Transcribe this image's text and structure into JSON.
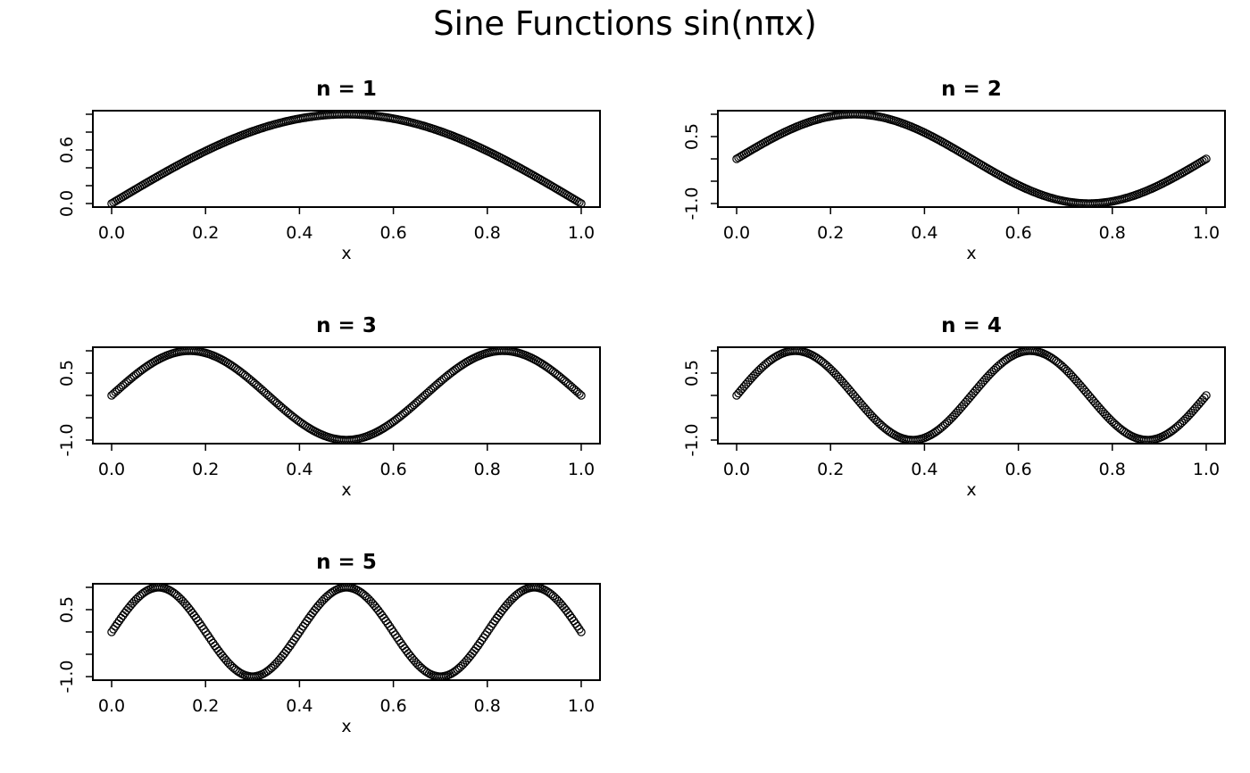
{
  "title": "Sine Functions sin(nπx)",
  "chart_data": [
    {
      "type": "scatter",
      "title": "n =  1",
      "xlabel": "x",
      "ylabel": "",
      "xlim": [
        0,
        1
      ],
      "ylim": [
        0,
        1
      ],
      "x_ticks": [
        0.0,
        0.2,
        0.4,
        0.6,
        0.8,
        1.0
      ],
      "x_tick_labels": [
        "0.0",
        "0.2",
        "0.4",
        "0.6",
        "0.8",
        "1.0"
      ],
      "y_ticks": [
        0.0,
        0.2,
        0.4,
        0.6,
        0.8,
        1.0
      ],
      "y_tick_labels": [
        "0.0",
        "",
        "",
        "0.6",
        "",
        ""
      ],
      "marker": "open-circle",
      "n": 1,
      "function": "sin(nπx)"
    },
    {
      "type": "scatter",
      "title": "n =  2",
      "xlabel": "x",
      "ylabel": "",
      "xlim": [
        0,
        1
      ],
      "ylim": [
        -1,
        1
      ],
      "x_ticks": [
        0.0,
        0.2,
        0.4,
        0.6,
        0.8,
        1.0
      ],
      "x_tick_labels": [
        "0.0",
        "0.2",
        "0.4",
        "0.6",
        "0.8",
        "1.0"
      ],
      "y_ticks": [
        -1.0,
        -0.5,
        0.0,
        0.5,
        1.0
      ],
      "y_tick_labels": [
        "-1.0",
        "",
        "",
        "0.5",
        ""
      ],
      "marker": "open-circle",
      "n": 2,
      "function": "sin(nπx)"
    },
    {
      "type": "scatter",
      "title": "n =  3",
      "xlabel": "x",
      "ylabel": "",
      "xlim": [
        0,
        1
      ],
      "ylim": [
        -1,
        1
      ],
      "x_ticks": [
        0.0,
        0.2,
        0.4,
        0.6,
        0.8,
        1.0
      ],
      "x_tick_labels": [
        "0.0",
        "0.2",
        "0.4",
        "0.6",
        "0.8",
        "1.0"
      ],
      "y_ticks": [
        -1.0,
        -0.5,
        0.0,
        0.5,
        1.0
      ],
      "y_tick_labels": [
        "-1.0",
        "",
        "",
        "0.5",
        ""
      ],
      "marker": "open-circle",
      "n": 3,
      "function": "sin(nπx)"
    },
    {
      "type": "scatter",
      "title": "n =  4",
      "xlabel": "x",
      "ylabel": "",
      "xlim": [
        0,
        1
      ],
      "ylim": [
        -1,
        1
      ],
      "x_ticks": [
        0.0,
        0.2,
        0.4,
        0.6,
        0.8,
        1.0
      ],
      "x_tick_labels": [
        "0.0",
        "0.2",
        "0.4",
        "0.6",
        "0.8",
        "1.0"
      ],
      "y_ticks": [
        -1.0,
        -0.5,
        0.0,
        0.5,
        1.0
      ],
      "y_tick_labels": [
        "-1.0",
        "",
        "",
        "0.5",
        ""
      ],
      "marker": "open-circle",
      "n": 4,
      "function": "sin(nπx)"
    },
    {
      "type": "scatter",
      "title": "n =  5",
      "xlabel": "x",
      "ylabel": "",
      "xlim": [
        0,
        1
      ],
      "ylim": [
        -1,
        1
      ],
      "x_ticks": [
        0.0,
        0.2,
        0.4,
        0.6,
        0.8,
        1.0
      ],
      "x_tick_labels": [
        "0.0",
        "0.2",
        "0.4",
        "0.6",
        "0.8",
        "1.0"
      ],
      "y_ticks": [
        -1.0,
        -0.5,
        0.0,
        0.5,
        1.0
      ],
      "y_tick_labels": [
        "-1.0",
        "",
        "",
        "0.5",
        ""
      ],
      "marker": "open-circle",
      "n": 5,
      "function": "sin(nπx)"
    }
  ]
}
